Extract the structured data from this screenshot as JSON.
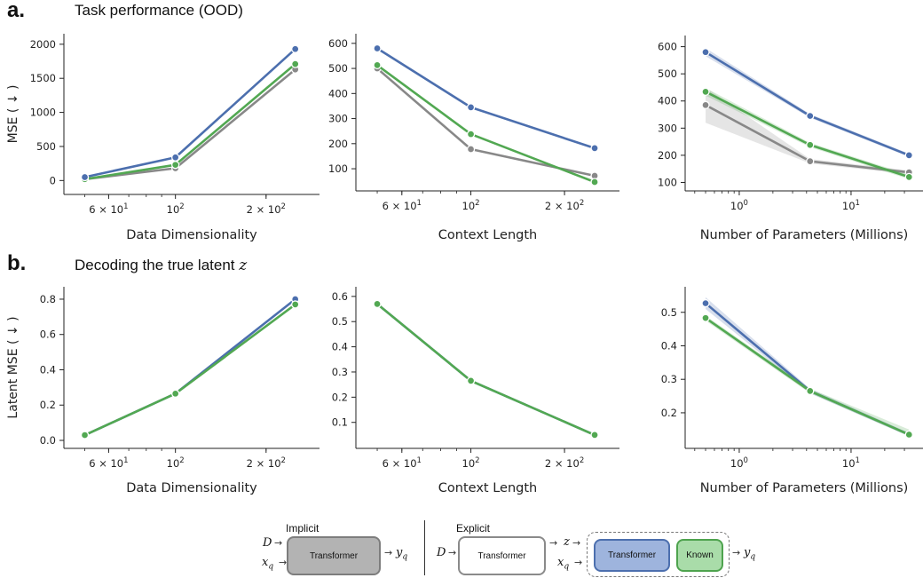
{
  "header_a": {
    "letter": "a.",
    "title": "Task performance (OOD)"
  },
  "header_b": {
    "letter": "b.",
    "title": "Decoding the true latent ",
    "title_var": "z"
  },
  "colors": {
    "blue": "#4c6fae",
    "green": "#52a852",
    "grey": "#888888"
  },
  "chart_data": [
    {
      "id": "a1",
      "type": "line",
      "xscale": "log",
      "xlabel": "Data Dimensionality",
      "ylabel": "MSE ( ↓ )",
      "xlim": [
        45,
        285
      ],
      "ylim": [
        -100,
        2050
      ],
      "yticks": [
        0,
        500,
        1000,
        1500,
        2000
      ],
      "xticks": [
        {
          "v": 60,
          "base": "6 × 10",
          "exp": "1"
        },
        {
          "v": 100,
          "base": "10",
          "exp": "2"
        },
        {
          "v": 200,
          "base": "2 × 10",
          "exp": "2"
        }
      ],
      "x": [
        50,
        100,
        250
      ],
      "series": [
        {
          "color": "grey",
          "values": [
            20,
            180,
            1630
          ]
        },
        {
          "color": "green",
          "values": [
            20,
            230,
            1710
          ]
        },
        {
          "color": "blue",
          "values": [
            50,
            340,
            1930
          ]
        }
      ]
    },
    {
      "id": "a2",
      "type": "line",
      "xscale": "log",
      "xlabel": "Context Length",
      "ylabel": "",
      "xlim": [
        45,
        285
      ],
      "ylim": [
        40,
        610
      ],
      "yticks": [
        100,
        200,
        300,
        400,
        500,
        600
      ],
      "xticks": [
        {
          "v": 60,
          "base": "6 × 10",
          "exp": "1"
        },
        {
          "v": 100,
          "base": "10",
          "exp": "2"
        },
        {
          "v": 200,
          "base": "2 × 10",
          "exp": "2"
        }
      ],
      "x": [
        50,
        100,
        250
      ],
      "series": [
        {
          "color": "grey",
          "values": [
            500,
            178,
            72
          ]
        },
        {
          "color": "green",
          "values": [
            513,
            238,
            47
          ]
        },
        {
          "color": "blue",
          "values": [
            580,
            345,
            182
          ]
        }
      ]
    },
    {
      "id": "a3",
      "type": "line",
      "xscale": "log",
      "xlabel": "Number of Parameters (Millions)",
      "ylabel": "",
      "xlim": [
        0.38,
        38
      ],
      "ylim": [
        95,
        615
      ],
      "yticks": [
        100,
        200,
        300,
        400,
        500,
        600
      ],
      "xticks": [
        {
          "v": 1,
          "base": "10",
          "exp": "0"
        },
        {
          "v": 10,
          "base": "10",
          "exp": "1"
        }
      ],
      "x": [
        0.5,
        4.3,
        33
      ],
      "series": [
        {
          "color": "grey",
          "values": [
            385,
            178,
            137
          ],
          "band": [
            [
              320,
              450
            ],
            [
              170,
              186
            ],
            [
              130,
              144
            ]
          ]
        },
        {
          "color": "green",
          "values": [
            434,
            238,
            120
          ],
          "band": [
            [
              420,
              448
            ],
            [
              230,
              246
            ],
            [
              112,
              128
            ]
          ]
        },
        {
          "color": "blue",
          "values": [
            580,
            345,
            200
          ],
          "band": [
            [
              565,
              595
            ],
            [
              338,
              352
            ],
            [
              194,
              206
            ]
          ]
        }
      ]
    },
    {
      "id": "b1",
      "type": "line",
      "xscale": "log",
      "xlabel": "Data Dimensionality",
      "ylabel": "Latent MSE ( ↓ )",
      "xlim": [
        45,
        285
      ],
      "ylim": [
        -0.005,
        0.83
      ],
      "yticks": [
        0.0,
        0.2,
        0.4,
        0.6,
        0.8
      ],
      "ydec": 1,
      "xticks": [
        {
          "v": 60,
          "base": "6 × 10",
          "exp": "1"
        },
        {
          "v": 100,
          "base": "10",
          "exp": "2"
        },
        {
          "v": 200,
          "base": "2 × 10",
          "exp": "2"
        }
      ],
      "x": [
        50,
        100,
        250
      ],
      "series": [
        {
          "color": "blue",
          "values": [
            0.03,
            0.265,
            0.8
          ]
        },
        {
          "color": "green",
          "values": [
            0.03,
            0.265,
            0.77
          ]
        }
      ]
    },
    {
      "id": "b2",
      "type": "line",
      "xscale": "log",
      "xlabel": "Context Length",
      "ylabel": "",
      "xlim": [
        45,
        285
      ],
      "ylim": [
        0.025,
        0.61
      ],
      "yticks": [
        0.1,
        0.2,
        0.3,
        0.4,
        0.5,
        0.6
      ],
      "ydec": 1,
      "xticks": [
        {
          "v": 60,
          "base": "6 × 10",
          "exp": "1"
        },
        {
          "v": 100,
          "base": "10",
          "exp": "2"
        },
        {
          "v": 200,
          "base": "2 × 10",
          "exp": "2"
        }
      ],
      "x": [
        50,
        100,
        250
      ],
      "series": [
        {
          "color": "blue",
          "values": [
            0.57,
            0.265,
            0.05
          ]
        },
        {
          "color": "green",
          "values": [
            0.57,
            0.265,
            0.05
          ]
        }
      ]
    },
    {
      "id": "b3",
      "type": "line",
      "xscale": "log",
      "xlabel": "Number of Parameters (Millions)",
      "ylabel": "",
      "xlim": [
        0.38,
        38
      ],
      "ylim": [
        0.115,
        0.555
      ],
      "yticks": [
        0.2,
        0.3,
        0.4,
        0.5
      ],
      "ydec": 1,
      "xticks": [
        {
          "v": 1,
          "base": "10",
          "exp": "0"
        },
        {
          "v": 10,
          "base": "10",
          "exp": "1"
        }
      ],
      "x": [
        0.5,
        4.3,
        33
      ],
      "series": [
        {
          "color": "blue",
          "values": [
            0.527,
            0.265,
            0.135
          ],
          "band": [
            [
              0.51,
              0.545
            ],
            [
              0.258,
              0.272
            ],
            [
              0.13,
              0.14
            ]
          ]
        },
        {
          "color": "green",
          "values": [
            0.483,
            0.265,
            0.135
          ],
          "band": [
            [
              0.475,
              0.49
            ],
            [
              0.258,
              0.272
            ],
            [
              0.13,
              0.15
            ]
          ]
        }
      ]
    }
  ],
  "diagram": {
    "implicit": {
      "label": "Implicit",
      "box": "Transformer",
      "in1": "D",
      "in2": "x",
      "in2_sub": "q",
      "out": "y",
      "out_sub": "q"
    },
    "explicit": {
      "label": "Explicit",
      "box1": "Transformer",
      "in1": "D",
      "in2": "x",
      "in2_sub": "q",
      "mid": "z",
      "box2": "Transformer",
      "box3": "Known",
      "out": "y",
      "out_sub": "q"
    }
  }
}
